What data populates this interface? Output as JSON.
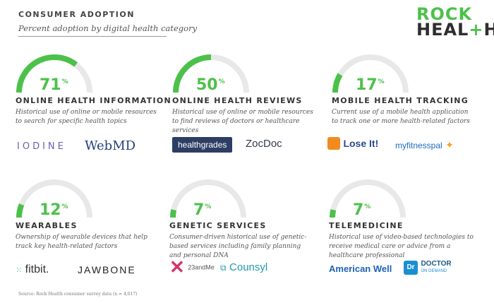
{
  "header": {
    "title": "CONSUMER ADOPTION",
    "subtitle": "Percent adoption by digital health category"
  },
  "logo": {
    "line1": "ROCK",
    "line2_a": "HEAL",
    "line2_plus": "+",
    "line2_b": "H"
  },
  "chart_data": {
    "type": "gauge",
    "unit": "%",
    "categories": [
      {
        "name": "ONLINE HEALTH INFORMATION",
        "value": 71,
        "description": "Historical use of online or mobile resources to search for specific health topics",
        "brands": [
          "IODINE",
          "WebMD"
        ]
      },
      {
        "name": "ONLINE HEALTH REVIEWS",
        "value": 50,
        "description": "Historical use of online or mobile resources to find reviews of doctors or healthcare services",
        "brands": [
          "healthgrades",
          "ZocDoc"
        ]
      },
      {
        "name": "MOBILE HEALTH TRACKING",
        "value": 17,
        "description": "Current use of a mobile health application to track one or more health-related factors",
        "brands": [
          "Lose It!",
          "myfitnesspal"
        ]
      },
      {
        "name": "WEARABLES",
        "value": 12,
        "description": "Ownership of wearable devices that help track key health-related factors",
        "brands": [
          "fitbit.",
          "JAWBONE"
        ]
      },
      {
        "name": "GENETIC SERVICES",
        "value": 7,
        "description": "Consumer-driven historical use of genetic-based services including family planning and personal DNA",
        "brands": [
          "23andMe",
          "Counsyl"
        ]
      },
      {
        "name": "TELEMEDICINE",
        "value": 7,
        "description": "Historical use of video-based technologies to receive medical care or advice from a healthcare professional",
        "brands": [
          "American Well",
          "DOCTOR",
          "ON DEMAND"
        ]
      }
    ],
    "range": [
      0,
      100
    ],
    "colors": {
      "fill": "#4cc14a",
      "track": "#e8e8e8"
    }
  },
  "footnote": "Source: Rock Health consumer survey data (n = 4,017)"
}
